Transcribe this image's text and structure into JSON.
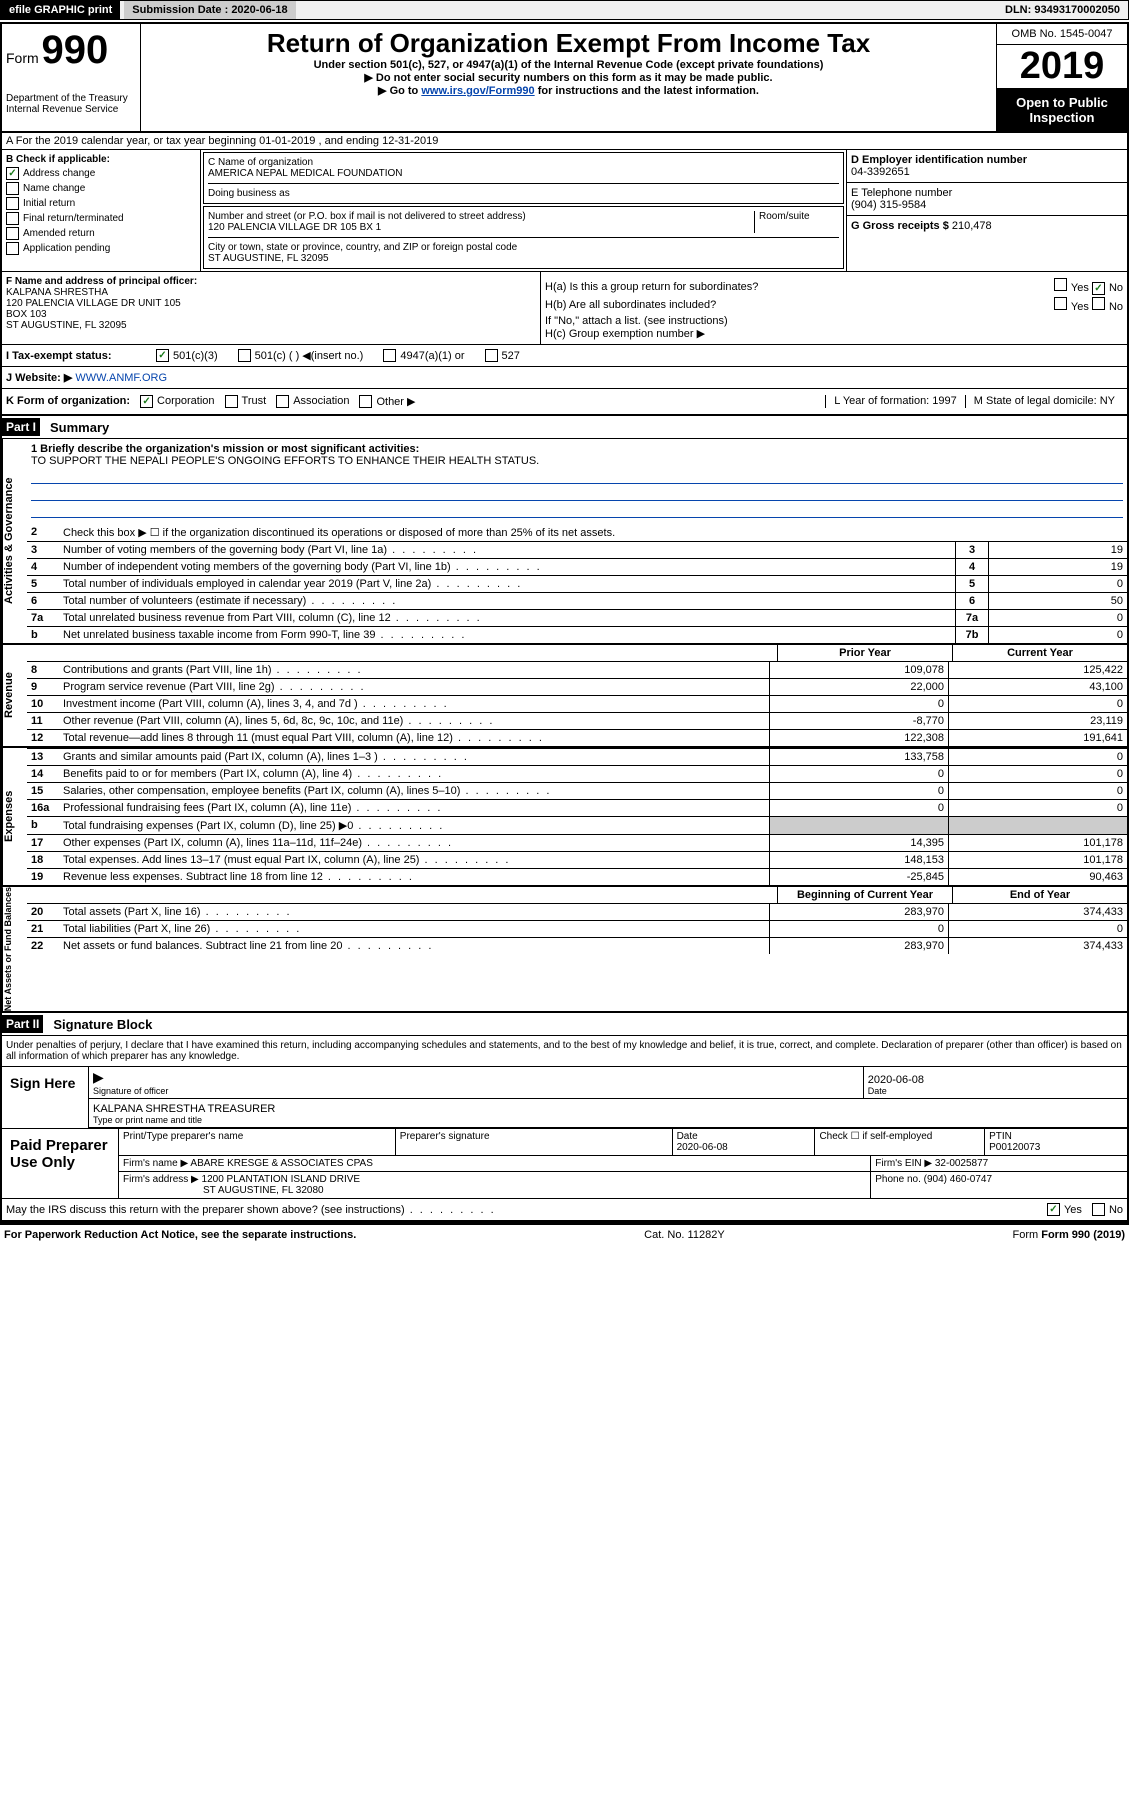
{
  "header": {
    "efile": "efile GRAPHIC print",
    "submission_label": "Submission Date : 2020-06-18",
    "dln": "DLN: 93493170002050"
  },
  "title": {
    "form": "Form",
    "num": "990",
    "department": "Department of the Treasury\nInternal Revenue Service",
    "main": "Return of Organization Exempt From Income Tax",
    "sub": "Under section 501(c), 527, or 4947(a)(1) of the Internal Revenue Code (except private foundations)",
    "instr1": "▶ Do not enter social security numbers on this form as it may be made public.",
    "instr2_pre": "▶ Go to ",
    "instr2_link": "www.irs.gov/Form990",
    "instr2_post": " for instructions and the latest information.",
    "omb": "OMB No. 1545-0047",
    "year": "2019",
    "open": "Open to Public Inspection"
  },
  "rowA": "A For the 2019 calendar year, or tax year beginning 01-01-2019    , and ending 12-31-2019",
  "checkB": {
    "label": "B Check if applicable:",
    "items": [
      {
        "label": "Address change",
        "checked": true
      },
      {
        "label": "Name change",
        "checked": false
      },
      {
        "label": "Initial return",
        "checked": false
      },
      {
        "label": "Final return/terminated",
        "checked": false
      },
      {
        "label": "Amended return",
        "checked": false
      },
      {
        "label": "Application pending",
        "checked": false
      }
    ]
  },
  "boxC": {
    "name_label": "C Name of organization",
    "name": "AMERICA NEPAL MEDICAL FOUNDATION",
    "dba_label": "Doing business as",
    "street_label": "Number and street (or P.O. box if mail is not delivered to street address)",
    "street": "120 PALENCIA VILLAGE DR 105 BX 1",
    "room_label": "Room/suite",
    "city_label": "City or town, state or province, country, and ZIP or foreign postal code",
    "city": "ST AUGUSTINE, FL  32095"
  },
  "boxD": {
    "label": "D Employer identification number",
    "ein": "04-3392651",
    "tel_label": "E Telephone number",
    "tel": "(904) 315-9584",
    "gross_label": "G Gross receipts $",
    "gross": "210,478"
  },
  "officer": {
    "label": "F  Name and address of principal officer:",
    "name": "KALPANA SHRESTHA",
    "addr1": "120 PALENCIA VILLAGE DR UNIT 105",
    "addr2": "BOX 103",
    "addr3": "ST AUGUSTINE, FL  32095"
  },
  "groupH": {
    "ha": "H(a)  Is this a group return for subordinates?",
    "hb": "H(b)  Are all subordinates included?",
    "hnote": "If \"No,\" attach a list. (see instructions)",
    "hc": "H(c)  Group exemption number ▶",
    "yes": "Yes",
    "no": "No"
  },
  "rowI": {
    "label": "I    Tax-exempt status:",
    "opts": [
      "501(c)(3)",
      "501(c) (  ) ◀(insert no.)",
      "4947(a)(1) or",
      "527"
    ]
  },
  "rowJ": {
    "label": "J   Website: ▶",
    "site": "WWW.ANMF.ORG"
  },
  "rowK": {
    "label": "K Form of organization:",
    "opts": [
      "Corporation",
      "Trust",
      "Association",
      "Other ▶"
    ],
    "year_label": "L Year of formation: 1997",
    "state_label": "M State of legal domicile: NY"
  },
  "part1": {
    "header": "Part I",
    "title": "Summary",
    "mission_label": "1   Briefly describe the organization's mission or most significant activities:",
    "mission": "TO SUPPORT THE NEPALI PEOPLE'S ONGOING EFFORTS TO ENHANCE THEIR HEALTH STATUS.",
    "line2": "Check this box ▶ ☐  if the organization discontinued its operations or disposed of more than 25% of its net assets."
  },
  "governance": {
    "lines": [
      {
        "n": "3",
        "desc": "Number of voting members of the governing body (Part VI, line 1a)",
        "box": "3",
        "val": "19"
      },
      {
        "n": "4",
        "desc": "Number of independent voting members of the governing body (Part VI, line 1b)",
        "box": "4",
        "val": "19"
      },
      {
        "n": "5",
        "desc": "Total number of individuals employed in calendar year 2019 (Part V, line 2a)",
        "box": "5",
        "val": "0"
      },
      {
        "n": "6",
        "desc": "Total number of volunteers (estimate if necessary)",
        "box": "6",
        "val": "50"
      },
      {
        "n": "7a",
        "desc": "Total unrelated business revenue from Part VIII, column (C), line 12",
        "box": "7a",
        "val": "0"
      },
      {
        "n": "b",
        "desc": "Net unrelated business taxable income from Form 990-T, line 39",
        "box": "7b",
        "val": "0"
      }
    ]
  },
  "finHeader": {
    "prior": "Prior Year",
    "current": "Current Year"
  },
  "revenue": [
    {
      "n": "8",
      "desc": "Contributions and grants (Part VIII, line 1h)",
      "prior": "109,078",
      "current": "125,422"
    },
    {
      "n": "9",
      "desc": "Program service revenue (Part VIII, line 2g)",
      "prior": "22,000",
      "current": "43,100"
    },
    {
      "n": "10",
      "desc": "Investment income (Part VIII, column (A), lines 3, 4, and 7d )",
      "prior": "0",
      "current": "0"
    },
    {
      "n": "11",
      "desc": "Other revenue (Part VIII, column (A), lines 5, 6d, 8c, 9c, 10c, and 11e)",
      "prior": "-8,770",
      "current": "23,119"
    },
    {
      "n": "12",
      "desc": "Total revenue—add lines 8 through 11 (must equal Part VIII, column (A), line 12)",
      "prior": "122,308",
      "current": "191,641"
    }
  ],
  "expenses": [
    {
      "n": "13",
      "desc": "Grants and similar amounts paid (Part IX, column (A), lines 1–3 )",
      "prior": "133,758",
      "current": "0"
    },
    {
      "n": "14",
      "desc": "Benefits paid to or for members (Part IX, column (A), line 4)",
      "prior": "0",
      "current": "0"
    },
    {
      "n": "15",
      "desc": "Salaries, other compensation, employee benefits (Part IX, column (A), lines 5–10)",
      "prior": "0",
      "current": "0"
    },
    {
      "n": "16a",
      "desc": "Professional fundraising fees (Part IX, column (A), line 11e)",
      "prior": "0",
      "current": "0"
    },
    {
      "n": "b",
      "desc": "Total fundraising expenses (Part IX, column (D), line 25) ▶0",
      "prior": "grey",
      "current": "grey"
    },
    {
      "n": "17",
      "desc": "Other expenses (Part IX, column (A), lines 11a–11d, 11f–24e)",
      "prior": "14,395",
      "current": "101,178"
    },
    {
      "n": "18",
      "desc": "Total expenses. Add lines 13–17 (must equal Part IX, column (A), line 25)",
      "prior": "148,153",
      "current": "101,178"
    },
    {
      "n": "19",
      "desc": "Revenue less expenses. Subtract line 18 from line 12",
      "prior": "-25,845",
      "current": "90,463"
    }
  ],
  "netHeader": {
    "prior": "Beginning of Current Year",
    "current": "End of Year"
  },
  "netassets": [
    {
      "n": "20",
      "desc": "Total assets (Part X, line 16)",
      "prior": "283,970",
      "current": "374,433"
    },
    {
      "n": "21",
      "desc": "Total liabilities (Part X, line 26)",
      "prior": "0",
      "current": "0"
    },
    {
      "n": "22",
      "desc": "Net assets or fund balances. Subtract line 21 from line 20",
      "prior": "283,970",
      "current": "374,433"
    }
  ],
  "part2": {
    "header": "Part II",
    "title": "Signature Block",
    "penalty": "Under penalties of perjury, I declare that I have examined this return, including accompanying schedules and statements, and to the best of my knowledge and belief, it is true, correct, and complete. Declaration of preparer (other than officer) is based on all information of which preparer has any knowledge."
  },
  "sign": {
    "here": "Sign Here",
    "sig_label": "Signature of officer",
    "date": "2020-06-08",
    "date_label": "Date",
    "name": "KALPANA SHRESTHA TREASURER",
    "name_label": "Type or print name and title"
  },
  "paid": {
    "label": "Paid Preparer Use Only",
    "print_label": "Print/Type preparer's name",
    "sig_label": "Preparer's signature",
    "date_label": "Date",
    "date": "2020-06-08",
    "check_label": "Check ☐ if self-employed",
    "ptin_label": "PTIN",
    "ptin": "P00120073",
    "firm_label": "Firm's name    ▶",
    "firm": "ABARE KRESGE & ASSOCIATES CPAS",
    "ein_label": "Firm's EIN ▶",
    "ein": "32-0025877",
    "addr_label": "Firm's address ▶",
    "addr": "1200 PLANTATION ISLAND DRIVE",
    "addr2": "ST AUGUSTINE, FL  32080",
    "phone_label": "Phone no.",
    "phone": "(904) 460-0747"
  },
  "discuss": {
    "text": "May the IRS discuss this return with the preparer shown above? (see instructions)",
    "yes": "Yes",
    "no": "No"
  },
  "footer": {
    "left": "For Paperwork Reduction Act Notice, see the separate instructions.",
    "center": "Cat. No. 11282Y",
    "right": "Form 990 (2019)"
  },
  "sideLabels": {
    "gov": "Activities & Governance",
    "rev": "Revenue",
    "exp": "Expenses",
    "net": "Net Assets or Fund Balances"
  }
}
